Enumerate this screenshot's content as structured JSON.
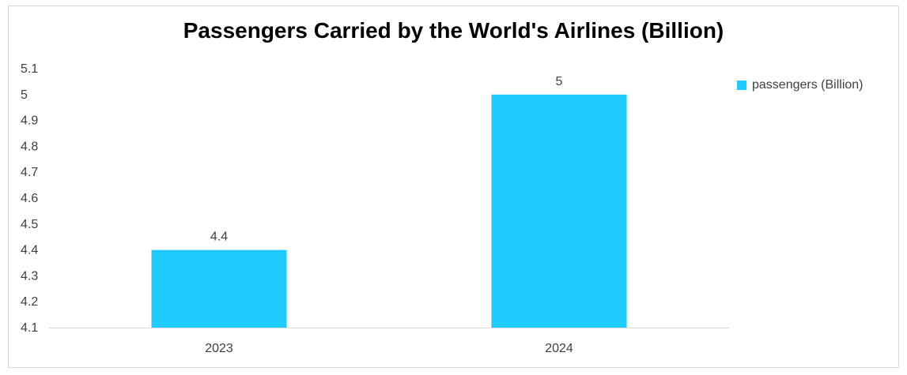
{
  "chart_data": {
    "type": "bar",
    "title": "Passengers Carried by the World's Airlines (Billion)",
    "categories": [
      "2023",
      "2024"
    ],
    "series": [
      {
        "name": "passengers (Billion)",
        "values": [
          4.4,
          5
        ],
        "data_labels": [
          "4.4",
          "5"
        ]
      }
    ],
    "ylim": [
      4.1,
      5.1
    ],
    "yticks": [
      "4.1",
      "4.2",
      "4.3",
      "4.4",
      "4.5",
      "4.6",
      "4.7",
      "4.8",
      "4.9",
      "5",
      "5.1"
    ],
    "grid": false,
    "legend_position": "right",
    "colors": {
      "bar": "#1fcaff",
      "axis": "#d9d9d9",
      "text": "#404040"
    }
  }
}
